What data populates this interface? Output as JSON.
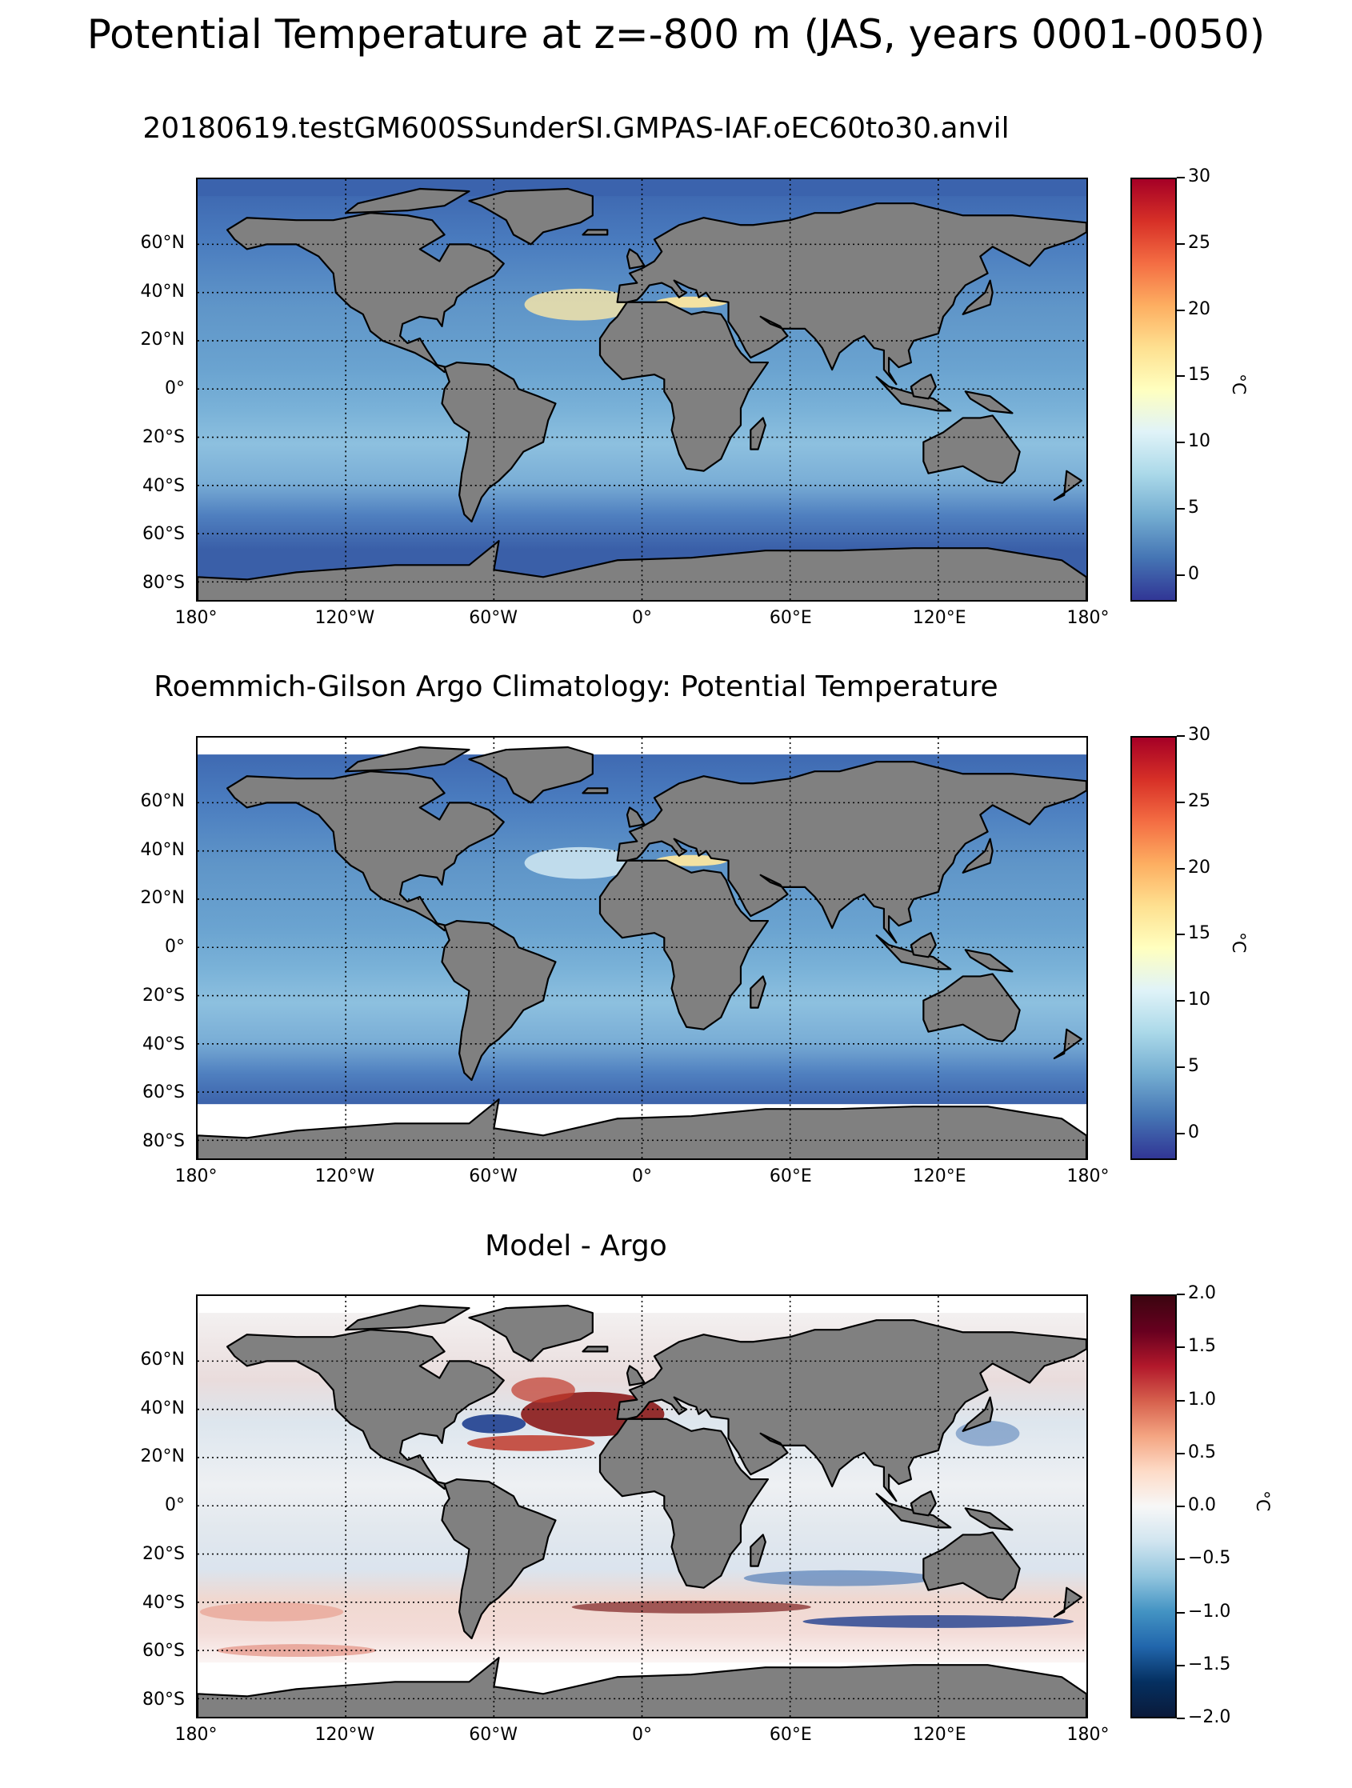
{
  "figure": {
    "suptitle": "Potential Temperature at z=-800 m (JAS, years 0001-0050)"
  },
  "panels": [
    {
      "title": "20180619.testGM600SSunderSI.GMPAS-IAF.oEC60to30.anvil",
      "colorbar": {
        "ticks": [
          "30",
          "25",
          "20",
          "15",
          "10",
          "5",
          "0"
        ],
        "unit": "°C",
        "range": [
          -2,
          30
        ],
        "colormap": "RdYlBu_r"
      },
      "ocean_base_color": "#5f92c6",
      "south_mask_lat": -80
    },
    {
      "title": "Roemmich-Gilson Argo Climatology: Potential Temperature",
      "colorbar": {
        "ticks": [
          "30",
          "25",
          "20",
          "15",
          "10",
          "5",
          "0"
        ],
        "unit": "°C",
        "range": [
          -2,
          30
        ],
        "colormap": "RdYlBu_r"
      },
      "ocean_base_color": "#6a9ed0",
      "south_mask_lat": -65
    },
    {
      "title": "Model - Argo",
      "colorbar": {
        "ticks": [
          "2.0",
          "1.5",
          "1.0",
          "0.5",
          "0.0",
          "−0.5",
          "−1.0",
          "−1.5",
          "−2.0"
        ],
        "unit": "°C",
        "range": [
          -2,
          2
        ],
        "colormap": "RdBu_r"
      },
      "ocean_base_color": "#e8e8ec",
      "south_mask_lat": -65
    }
  ],
  "axes": {
    "ylabels": [
      "60°N",
      "40°N",
      "20°N",
      "0°",
      "20°S",
      "40°S",
      "60°S",
      "80°S"
    ],
    "xlabels": [
      "180°",
      "120°W",
      "60°W",
      "0°",
      "60°E",
      "120°E",
      "180°"
    ]
  },
  "colors": {
    "land": "#808080",
    "ice_mask": "#ffffff",
    "grid": "#000000"
  }
}
